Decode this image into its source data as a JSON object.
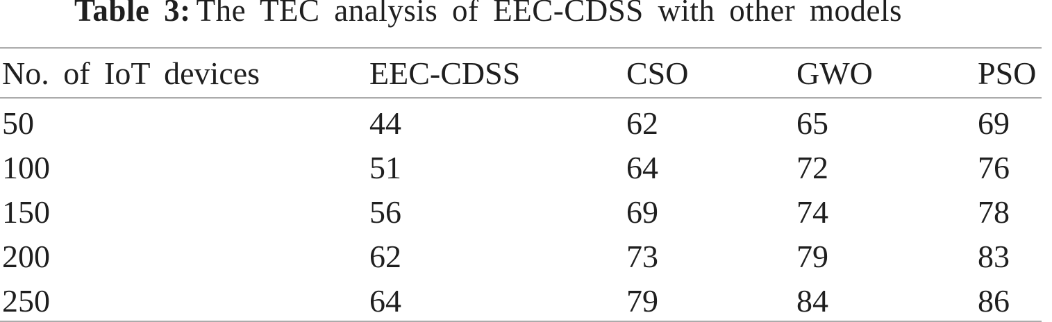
{
  "title": {
    "label": "Table 3:",
    "text": "The TEC analysis of EEC-CDSS with other models"
  },
  "table": {
    "columns": [
      "No. of IoT devices",
      "EEC-CDSS",
      "CSO",
      "GWO",
      "PSO"
    ],
    "rows": [
      [
        "50",
        "44",
        "62",
        "65",
        "69"
      ],
      [
        "100",
        "51",
        "64",
        "72",
        "76"
      ],
      [
        "150",
        "56",
        "69",
        "74",
        "78"
      ],
      [
        "200",
        "62",
        "73",
        "79",
        "83"
      ],
      [
        "250",
        "64",
        "79",
        "84",
        "86"
      ]
    ]
  },
  "chart_data": {
    "type": "table",
    "title": "Table 3: The TEC analysis of EEC-CDSS with other models",
    "categories": [
      50,
      100,
      150,
      200,
      250
    ],
    "categories_label": "No. of IoT devices",
    "series": [
      {
        "name": "EEC-CDSS",
        "values": [
          44,
          51,
          56,
          62,
          64
        ]
      },
      {
        "name": "CSO",
        "values": [
          62,
          64,
          69,
          73,
          79
        ]
      },
      {
        "name": "GWO",
        "values": [
          65,
          72,
          74,
          79,
          84
        ]
      },
      {
        "name": "PSO",
        "values": [
          69,
          76,
          78,
          83,
          86
        ]
      }
    ]
  },
  "colors": {
    "text": "#1f1f1f",
    "rule": "#ababab",
    "background": "#ffffff"
  }
}
